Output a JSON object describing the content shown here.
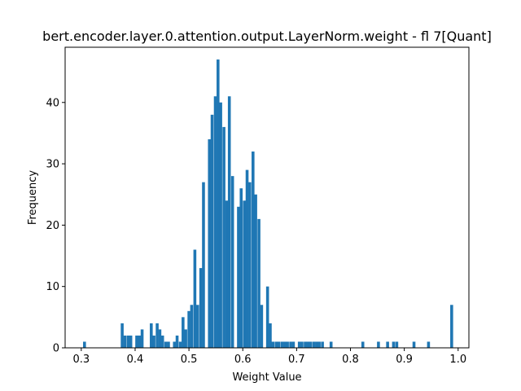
{
  "chart_data": {
    "type": "bar",
    "title": "bert.encoder.layer.0.attention.output.LayerNorm.weight - fl 7[Quant]",
    "xlabel": "Weight Value",
    "ylabel": "Frequency",
    "xlim": [
      0.27,
      1.02
    ],
    "ylim": [
      0,
      49
    ],
    "grid": false,
    "legend": "none",
    "bar_color": "#1f77b4",
    "bin_width": 0.0054,
    "xticks": [
      0.3,
      0.4,
      0.5,
      0.6,
      0.7,
      0.8,
      0.9,
      1.0
    ],
    "xtick_labels": [
      "0.3",
      "0.4",
      "0.5",
      "0.6",
      "0.7",
      "0.8",
      "0.9",
      "1.0"
    ],
    "yticks": [
      0,
      10,
      20,
      30,
      40
    ],
    "ytick_labels": [
      "0",
      "10",
      "20",
      "30",
      "40"
    ],
    "x": [
      0.306,
      0.376,
      0.381,
      0.387,
      0.392,
      0.403,
      0.408,
      0.413,
      0.43,
      0.435,
      0.441,
      0.446,
      0.451,
      0.457,
      0.462,
      0.473,
      0.478,
      0.484,
      0.489,
      0.494,
      0.5,
      0.505,
      0.511,
      0.516,
      0.522,
      0.527,
      0.538,
      0.543,
      0.549,
      0.554,
      0.559,
      0.565,
      0.57,
      0.575,
      0.581,
      0.592,
      0.597,
      0.603,
      0.608,
      0.613,
      0.619,
      0.624,
      0.63,
      0.635,
      0.646,
      0.651,
      0.656,
      0.662,
      0.667,
      0.673,
      0.678,
      0.683,
      0.689,
      0.694,
      0.705,
      0.71,
      0.716,
      0.721,
      0.726,
      0.732,
      0.737,
      0.742,
      0.748,
      0.764,
      0.823,
      0.852,
      0.869,
      0.88,
      0.886,
      0.918,
      0.945,
      0.988
    ],
    "values": [
      1,
      4,
      2,
      2,
      2,
      2,
      2,
      3,
      4,
      2,
      4,
      3,
      2,
      1,
      1,
      1,
      2,
      1,
      5,
      3,
      6,
      7,
      16,
      7,
      13,
      27,
      34,
      38,
      41,
      47,
      40,
      36,
      24,
      41,
      28,
      23,
      26,
      24,
      29,
      27,
      32,
      25,
      21,
      7,
      10,
      4,
      1,
      1,
      1,
      1,
      1,
      1,
      1,
      1,
      1,
      1,
      1,
      1,
      1,
      1,
      1,
      1,
      1,
      1,
      1,
      1,
      1,
      1,
      1,
      1,
      1,
      7
    ]
  }
}
